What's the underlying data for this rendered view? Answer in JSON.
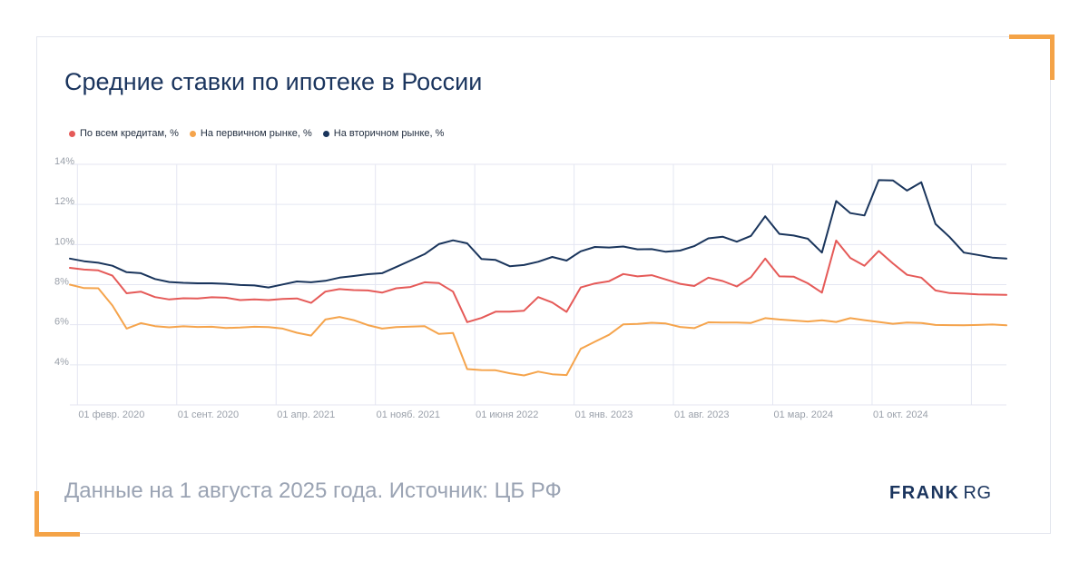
{
  "colors": {
    "accent": "#f4a347",
    "series_all": "#e55a58",
    "series_primary": "#f5a44c",
    "series_secondary": "#1a355c",
    "grid": "#e4e6f2",
    "tick": "#9aa0aa"
  },
  "header": {
    "title": "Средние ставки по ипотеке в России"
  },
  "footer": {
    "source_text": "Данные на 1 августа 2025 года. Источник: ЦБ РФ"
  },
  "brand": {
    "part1": "FRANK",
    "part2": "RG"
  },
  "legend": [
    {
      "label": "По всем кредитам, %",
      "color": "#e55a58"
    },
    {
      "label": "На первичном рынке, %",
      "color": "#f5a44c"
    },
    {
      "label": "На вторичном рынке, %",
      "color": "#1a355c"
    }
  ],
  "chart_data": {
    "type": "line",
    "title": "Средние ставки по ипотеке в России",
    "x_start": "2019-12",
    "x_end": "2025-06",
    "xlabel": "",
    "ylabel": "",
    "ylim": [
      2,
      14
    ],
    "yticks": [
      14,
      12,
      10,
      8,
      6,
      4
    ],
    "ytick_labels": [
      "14%",
      "12%",
      "10%",
      "8%",
      "6%",
      "4%"
    ],
    "xtick_labels": [
      "01 февр. 2020",
      "01 сент. 2020",
      "01 апр. 2021",
      "01 нояб. 2021",
      "01 июня 2022",
      "01 янв. 2023",
      "01 авг. 2023",
      "01 мар. 2024",
      "01 окт. 2024"
    ],
    "grid": true,
    "legend_position": "top-left",
    "series": [
      {
        "name": "По всем кредитам, %",
        "color": "#e55a58",
        "values": [
          8.84,
          8.75,
          8.71,
          8.45,
          7.57,
          7.65,
          7.38,
          7.26,
          7.32,
          7.31,
          7.37,
          7.35,
          7.23,
          7.26,
          7.23,
          7.29,
          7.31,
          7.09,
          7.65,
          7.78,
          7.73,
          7.71,
          7.6,
          7.82,
          7.88,
          8.12,
          8.08,
          7.65,
          6.13,
          6.34,
          6.65,
          6.65,
          6.7,
          7.38,
          7.11,
          6.64,
          7.86,
          8.06,
          8.17,
          8.53,
          8.41,
          8.47,
          8.26,
          8.04,
          7.93,
          8.35,
          8.18,
          7.91,
          8.37,
          9.3,
          8.41,
          8.4,
          8.07,
          7.6,
          10.2,
          9.33,
          8.94,
          9.68,
          9.06,
          8.49,
          8.35,
          7.71,
          7.58,
          7.55,
          7.51,
          7.5,
          7.49
        ]
      },
      {
        "name": "На первичном рынке, %",
        "color": "#f5a44c",
        "values": [
          8.0,
          7.83,
          7.82,
          6.96,
          5.81,
          6.08,
          5.93,
          5.87,
          5.92,
          5.89,
          5.9,
          5.84,
          5.86,
          5.9,
          5.88,
          5.81,
          5.6,
          5.46,
          6.26,
          6.39,
          6.23,
          5.98,
          5.81,
          5.88,
          5.91,
          5.93,
          5.54,
          5.59,
          3.79,
          3.74,
          3.73,
          3.58,
          3.47,
          3.66,
          3.53,
          3.49,
          4.8,
          5.15,
          5.5,
          6.02,
          6.04,
          6.1,
          6.06,
          5.89,
          5.83,
          6.12,
          6.11,
          6.11,
          6.09,
          6.33,
          6.26,
          6.21,
          6.16,
          6.22,
          6.14,
          6.33,
          6.23,
          6.14,
          6.05,
          6.11,
          6.09,
          5.99,
          5.98,
          5.97,
          5.99,
          6.01,
          5.97
        ]
      },
      {
        "name": "На вторичном рынке, %",
        "color": "#1a355c",
        "values": [
          9.3,
          9.17,
          9.09,
          8.94,
          8.62,
          8.57,
          8.28,
          8.13,
          8.09,
          8.07,
          8.07,
          8.04,
          7.98,
          7.96,
          7.86,
          8.01,
          8.16,
          8.12,
          8.19,
          8.35,
          8.43,
          8.52,
          8.57,
          8.88,
          9.2,
          9.52,
          10.02,
          10.21,
          10.06,
          9.28,
          9.23,
          8.92,
          8.98,
          9.14,
          9.38,
          9.2,
          9.66,
          9.88,
          9.85,
          9.9,
          9.76,
          9.77,
          9.64,
          9.7,
          9.92,
          10.31,
          10.39,
          10.14,
          10.43,
          11.41,
          10.53,
          10.45,
          10.29,
          9.6,
          12.17,
          11.57,
          11.45,
          13.21,
          13.2,
          12.69,
          13.11,
          11.03,
          10.37,
          9.6,
          9.48,
          9.35,
          9.3
        ]
      }
    ]
  }
}
